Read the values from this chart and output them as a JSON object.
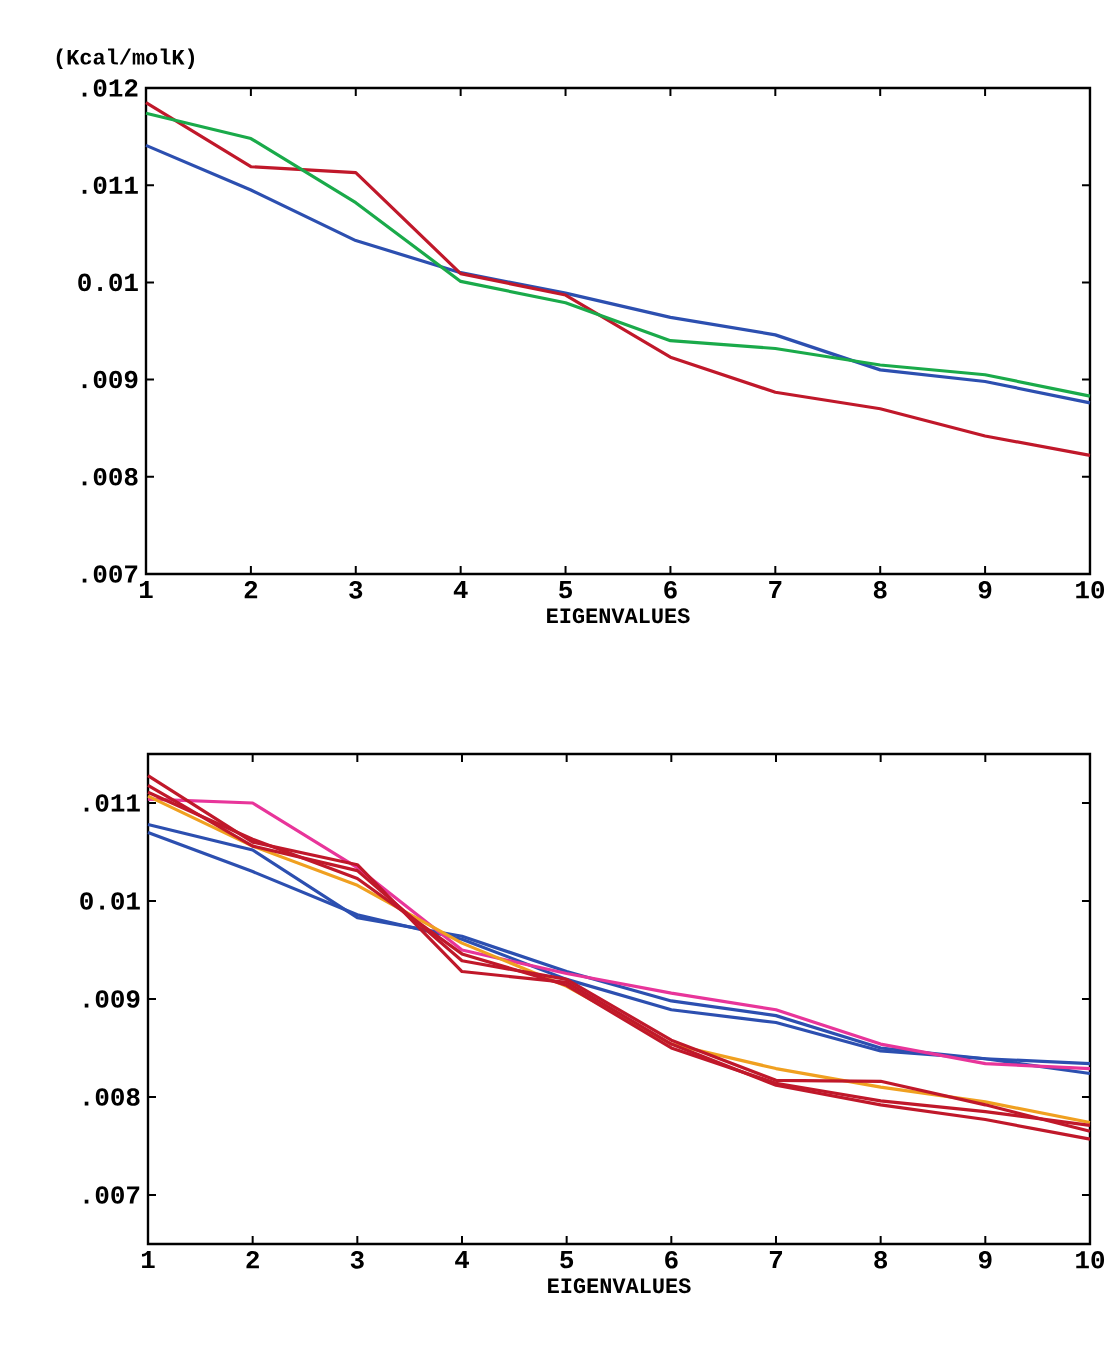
{
  "chart_data": [
    {
      "type": "line",
      "ylabel": "(Kcal/molK)",
      "xlabel": "EIGENVALUES",
      "x": [
        1,
        2,
        3,
        4,
        5,
        6,
        7,
        8,
        9,
        10
      ],
      "xlim": [
        1,
        10
      ],
      "xticks": [
        1,
        2,
        3,
        4,
        5,
        6,
        7,
        8,
        9,
        10
      ],
      "ylim": [
        0.007,
        0.012
      ],
      "yticks": [
        {
          "value": 0.007,
          "label": ".007"
        },
        {
          "value": 0.008,
          "label": ".008"
        },
        {
          "value": 0.009,
          "label": ".009"
        },
        0.01,
        {
          "value": 0.011,
          "label": ".011"
        },
        {
          "value": 0.012,
          "label": ".012"
        }
      ],
      "series": [
        {
          "color": "#2c4fb0",
          "values": [
            0.01141,
            0.01095,
            0.01043,
            0.0101,
            0.00989,
            0.00964,
            0.00946,
            0.0091,
            0.00898,
            0.00876
          ]
        },
        {
          "color": "#c0182a",
          "values": [
            0.01185,
            0.01119,
            0.01113,
            0.01009,
            0.00987,
            0.00923,
            0.00887,
            0.0087,
            0.00842,
            0.00822
          ]
        },
        {
          "color": "#1aaa4a",
          "values": [
            0.01174,
            0.01148,
            0.01082,
            0.01001,
            0.00979,
            0.0094,
            0.00932,
            0.00915,
            0.00905,
            0.00883
          ]
        }
      ]
    },
    {
      "type": "line",
      "xlabel": "EIGENVALUES",
      "x": [
        1,
        2,
        3,
        4,
        5,
        6,
        7,
        8,
        9,
        10
      ],
      "xlim": [
        1,
        10
      ],
      "xticks": [
        1,
        2,
        3,
        4,
        5,
        6,
        7,
        8,
        9,
        10
      ],
      "ylim": [
        0.0065,
        0.0115
      ],
      "yticks": [
        {
          "value": 0.007,
          "label": ".007"
        },
        {
          "value": 0.008,
          "label": ".008"
        },
        {
          "value": 0.009,
          "label": ".009"
        },
        0.01,
        {
          "value": 0.011,
          "label": ".011"
        }
      ],
      "series": [
        {
          "color": "#2c4fb0",
          "values": [
            0.01078,
            0.01052,
            0.00983,
            0.00964,
            0.00928,
            0.00898,
            0.00883,
            0.0085,
            0.00839,
            0.00834
          ]
        },
        {
          "color": "#2c4fb0",
          "values": [
            0.0107,
            0.0103,
            0.00986,
            0.00961,
            0.0092,
            0.00889,
            0.00876,
            0.00847,
            0.00839,
            0.00824
          ]
        },
        {
          "color": "#e8359a",
          "values": [
            0.01104,
            0.011,
            0.01034,
            0.0095,
            0.00926,
            0.00906,
            0.00889,
            0.00854,
            0.00834,
            0.00829
          ]
        },
        {
          "color": "#f0a020",
          "values": [
            0.01107,
            0.01056,
            0.01016,
            0.00957,
            0.00913,
            0.00854,
            0.00829,
            0.0081,
            0.00795,
            0.00774
          ]
        },
        {
          "color": "#c0182a",
          "values": [
            0.01128,
            0.0106,
            0.01037,
            0.00928,
            0.00917,
            0.00854,
            0.00812,
            0.00792,
            0.00777,
            0.00757
          ]
        },
        {
          "color": "#c0182a",
          "values": [
            0.01118,
            0.01056,
            0.01031,
            0.00939,
            0.0092,
            0.00858,
            0.00817,
            0.00816,
            0.00792,
            0.00765
          ]
        },
        {
          "color": "#c0182a",
          "values": [
            0.01111,
            0.01063,
            0.01023,
            0.00946,
            0.00914,
            0.0085,
            0.00814,
            0.00796,
            0.00785,
            0.00771
          ]
        }
      ]
    }
  ]
}
